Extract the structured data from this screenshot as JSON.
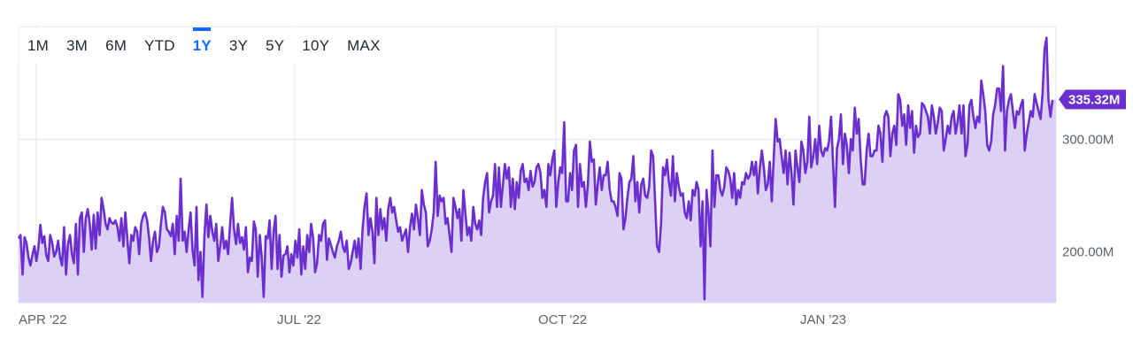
{
  "range_tabs": [
    {
      "label": "1M"
    },
    {
      "label": "3M"
    },
    {
      "label": "6M"
    },
    {
      "label": "YTD"
    },
    {
      "label": "1Y",
      "active": true
    },
    {
      "label": "3Y"
    },
    {
      "label": "5Y"
    },
    {
      "label": "10Y"
    },
    {
      "label": "MAX"
    }
  ],
  "colors": {
    "line": "#6b2fd0",
    "fill": "#dcd0f4",
    "grid": "#e6e6e6",
    "tick_text": "#5b636a",
    "active_tab": "#0f69ff",
    "badge_bg": "#6b2fd0",
    "badge_text": "#ffffff"
  },
  "chart_data": {
    "type": "area",
    "x_ticks": [
      "APR '22",
      "JUL '22",
      "OCT '22",
      "JAN '23"
    ],
    "y_ticks": [
      {
        "value": 200000000,
        "label": "200.00M"
      },
      {
        "value": 300000000,
        "label": "300.00M"
      }
    ],
    "ylim": [
      155000000,
      400000000
    ],
    "current_value_label": "335.32M",
    "current_value": 335320000,
    "grid": true,
    "series": [
      {
        "values": [
          212,
          215,
          180,
          213,
          208,
          195,
          188,
          197,
          205,
          192,
          203,
          224,
          208,
          214,
          197,
          192,
          215,
          208,
          196,
          200,
          210,
          195,
          188,
          222,
          180,
          207,
          215,
          198,
          190,
          225,
          180,
          230,
          235,
          200,
          230,
          238,
          225,
          202,
          233,
          203,
          235,
          215,
          248,
          238,
          225,
          220,
          230,
          226,
          225,
          228,
          222,
          210,
          230,
          205,
          235,
          212,
          190,
          215,
          210,
          222,
          218,
          198,
          225,
          232,
          235,
          228,
          213,
          192,
          210,
          218,
          200,
          205,
          225,
          240,
          235,
          220,
          218,
          214,
          225,
          198,
          232,
          210,
          265,
          210,
          218,
          200,
          220,
          235,
          202,
          188,
          240,
          175,
          200,
          160,
          213,
          242,
          213,
          232,
          218,
          210,
          225,
          192,
          205,
          222,
          203,
          210,
          198,
          225,
          248,
          220,
          207,
          225,
          208,
          213,
          202,
          222,
          182,
          195,
          192,
          227,
          220,
          178,
          215,
          195,
          160,
          214,
          212,
          228,
          185,
          218,
          232,
          185,
          215,
          178,
          197,
          198,
          205,
          182,
          198,
          188,
          210,
          195,
          220,
          180,
          205,
          185,
          215,
          200,
          225,
          212,
          182,
          190,
          215,
          210,
          225,
          228,
          193,
          212,
          206,
          200,
          195,
          205,
          210,
          218,
          205,
          200,
          210,
          185,
          190,
          200,
          210,
          195,
          212,
          185,
          220,
          240,
          252,
          215,
          230,
          218,
          190,
          248,
          215,
          238,
          220,
          230,
          210,
          238,
          248,
          235,
          240,
          228,
          218,
          222,
          210,
          215,
          220,
          200,
          222,
          234,
          220,
          242,
          230,
          215,
          255,
          242,
          235,
          205,
          210,
          220,
          235,
          280,
          232,
          250,
          245,
          248,
          225,
          230,
          215,
          200,
          248,
          240,
          230,
          238,
          210,
          255,
          235,
          215,
          222,
          210,
          240,
          225,
          220,
          228,
          215,
          248,
          262,
          270,
          235,
          245,
          250,
          278,
          240,
          275,
          240,
          260,
          278,
          265,
          275,
          240,
          265,
          238,
          262,
          248,
          272,
          278,
          262,
          265,
          255,
          272,
          258,
          262,
          275,
          278,
          270,
          248,
          255,
          240,
          278,
          268,
          282,
          290,
          240,
          262,
          275,
          270,
          315,
          245,
          245,
          270,
          255,
          290,
          295,
          240,
          278,
          258,
          262,
          240,
          260,
          298,
          280,
          282,
          242,
          260,
          275,
          255,
          268,
          268,
          280,
          256,
          245,
          245,
          240,
          232,
          270,
          265,
          220,
          230,
          248,
          262,
          265,
          285,
          245,
          262,
          235,
          260,
          265,
          250,
          248,
          258,
          290,
          285,
          245,
          205,
          200,
          225,
          275,
          268,
          282,
          262,
          250,
          285,
          245,
          270,
          258,
          250,
          252,
          235,
          230,
          245,
          228,
          255,
          250,
          262,
          255,
          205,
          245,
          158,
          255,
          235,
          205,
          290,
          240,
          268,
          268,
          255,
          250,
          258,
          275,
          272,
          265,
          248,
          270,
          242,
          255,
          248,
          262,
          260,
          270,
          265,
          268,
          280,
          268,
          280,
          252,
          275,
          290,
          275,
          255,
          260,
          280,
          245,
          283,
          318,
          298,
          300,
          285,
          270,
          290,
          260,
          288,
          270,
          242,
          290,
          275,
          262,
          298,
          290,
          270,
          280,
          320,
          275,
          285,
          300,
          278,
          312,
          290,
          285,
          292,
          290,
          298,
          320,
          280,
          240,
          292,
          300,
          322,
          278,
          305,
          295,
          270,
          300,
          290,
          328,
          305,
          318,
          282,
          260,
          260,
          290,
          305,
          285,
          285,
          290,
          290,
          312,
          305,
          280,
          320,
          325,
          320,
          285,
          305,
          312,
          295,
          340,
          335,
          312,
          322,
          295,
          330,
          310,
          325,
          288,
          312,
          302,
          305,
          332,
          330,
          325,
          320,
          305,
          330,
          320,
          305,
          315,
          328,
          325,
          290,
          300,
          312,
          305,
          320,
          325,
          305,
          315,
          330,
          305,
          330,
          285,
          295,
          330,
          335,
          320,
          310,
          320,
          315,
          352,
          340,
          325,
          295,
          290,
          298,
          322,
          330,
          345,
          345,
          325,
          365,
          290,
          325,
          335,
          340,
          325,
          310,
          325,
          322,
          330,
          335,
          290,
          305,
          315,
          325,
          320,
          340,
          332,
          325,
          318,
          340,
          380,
          390,
          335,
          320,
          335
        ]
      }
    ]
  }
}
